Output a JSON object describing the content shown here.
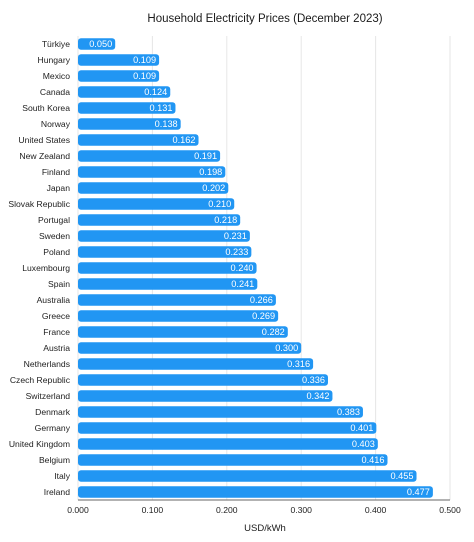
{
  "chart_data": {
    "type": "bar",
    "orientation": "horizontal",
    "title": "Household Electricity Prices (December 2023)",
    "xlabel": "USD/kWh",
    "ylabel": "",
    "xlim": [
      0,
      0.5
    ],
    "x_ticks": [
      "0.000",
      "0.100",
      "0.200",
      "0.300",
      "0.400",
      "0.500"
    ],
    "grid": "vertical",
    "bar_color": "#2196F3",
    "categories": [
      "Türkiye",
      "Hungary",
      "Mexico",
      "Canada",
      "South Korea",
      "Norway",
      "United States",
      "New Zealand",
      "Finland",
      "Japan",
      "Slovak Republic",
      "Portugal",
      "Sweden",
      "Poland",
      "Luxembourg",
      "Spain",
      "Australia",
      "Greece",
      "France",
      "Austria",
      "Netherlands",
      "Czech Republic",
      "Switzerland",
      "Denmark",
      "Germany",
      "United Kingdom",
      "Belgium",
      "Italy",
      "Ireland"
    ],
    "values": [
      0.05,
      0.109,
      0.109,
      0.124,
      0.131,
      0.138,
      0.162,
      0.191,
      0.198,
      0.202,
      0.21,
      0.218,
      0.231,
      0.233,
      0.24,
      0.241,
      0.266,
      0.269,
      0.282,
      0.3,
      0.316,
      0.336,
      0.342,
      0.383,
      0.401,
      0.403,
      0.416,
      0.455,
      0.477
    ],
    "value_labels": [
      "0.050",
      "0.109",
      "0.109",
      "0.124",
      "0.131",
      "0.138",
      "0.162",
      "0.191",
      "0.198",
      "0.202",
      "0.210",
      "0.218",
      "0.231",
      "0.233",
      "0.240",
      "0.241",
      "0.266",
      "0.269",
      "0.282",
      "0.300",
      "0.316",
      "0.336",
      "0.342",
      "0.383",
      "0.401",
      "0.403",
      "0.416",
      "0.455",
      "0.477"
    ]
  }
}
